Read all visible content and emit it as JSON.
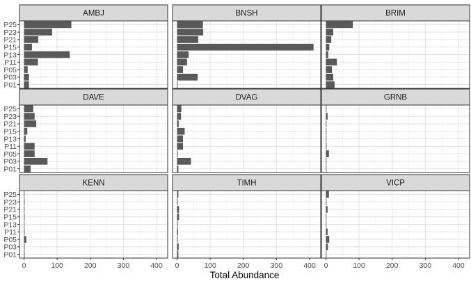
{
  "chart_data": {
    "type": "bar",
    "orientation": "horizontal",
    "facet_wrap": {
      "ncol": 3,
      "nrow": 3
    },
    "xlabel": "Total Abundance",
    "ylabel": "",
    "xlim": [
      0,
      420
    ],
    "x_ticks": [
      0,
      100,
      200,
      300,
      400
    ],
    "categories": [
      "P01",
      "P03",
      "P05",
      "P11",
      "P13",
      "P15",
      "P21",
      "P23",
      "P25"
    ],
    "grid": true,
    "bar_color": "#595959",
    "strip_color": "#d9d9d9",
    "panels": [
      {
        "name": "AMBJ",
        "values": [
          15,
          15,
          11,
          42,
          138,
          24,
          43,
          85,
          143
        ]
      },
      {
        "name": "BNSH",
        "values": [
          2,
          62,
          18,
          30,
          35,
          412,
          64,
          79,
          78
        ]
      },
      {
        "name": "BRIM",
        "values": [
          26,
          22,
          18,
          33,
          7,
          10,
          16,
          22,
          81
        ]
      },
      {
        "name": "DAVE",
        "values": [
          20,
          71,
          32,
          32,
          5,
          10,
          37,
          32,
          28
        ]
      },
      {
        "name": "DVAG",
        "values": [
          4,
          42,
          2,
          18,
          18,
          23,
          5,
          12,
          13
        ]
      },
      {
        "name": "GRNB",
        "values": [
          0,
          0,
          9,
          2,
          1,
          0,
          0,
          5,
          0
        ]
      },
      {
        "name": "KENN",
        "values": [
          2,
          2,
          7,
          2,
          1,
          2,
          1,
          2,
          0
        ]
      },
      {
        "name": "TIMH",
        "values": [
          4,
          5,
          2,
          3,
          2,
          6,
          6,
          2,
          4
        ]
      },
      {
        "name": "VICP",
        "values": [
          0,
          6,
          10,
          5,
          0,
          0,
          5,
          0,
          9
        ]
      }
    ]
  }
}
